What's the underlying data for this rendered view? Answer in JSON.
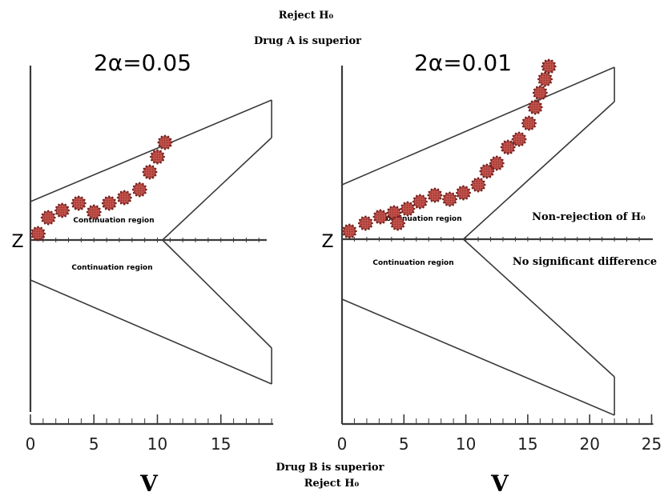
{
  "annotations": {
    "top_reject": "Reject H₀",
    "top_superior": "Drug A is superior",
    "bottom_superior": "Drug B is superior",
    "bottom_reject": "Reject H₀",
    "non_rejection": "Non-rejection of H₀",
    "no_difference": "No significant difference"
  },
  "colors": {
    "line": "#3a3a3a",
    "marker": "#c2504a",
    "marker_edge": "#7a2420"
  },
  "chart_data": [
    {
      "type": "line",
      "title": "2α=0.05",
      "xlabel": "V",
      "ylabel": "Z",
      "xlim": [
        0,
        19
      ],
      "xticks": [
        0,
        5,
        10,
        15
      ],
      "tick_labels": [
        "0",
        "5",
        "10",
        "15"
      ],
      "region_labels": [
        "Continuation region",
        "Continuation region"
      ],
      "boundaries": {
        "upper_outer": {
          "x": [
            0,
            19
          ],
          "z": [
            48,
            175
          ]
        },
        "upper_inner": {
          "x": [
            10.4,
            19
          ],
          "z": [
            0,
            128
          ]
        },
        "lower_inner": {
          "x": [
            10.4,
            19
          ],
          "z": [
            0,
            -135
          ]
        },
        "lower_outer": {
          "x": [
            0,
            19
          ],
          "z": [
            -50,
            -180
          ]
        }
      },
      "path": {
        "x": [
          0.6,
          1.4,
          2.5,
          3.8,
          5.0,
          6.2,
          7.4,
          8.6,
          9.4,
          10.0,
          10.6
        ],
        "z": [
          8,
          28,
          37,
          46,
          35,
          46,
          53,
          63,
          85,
          104,
          122
        ]
      }
    },
    {
      "type": "line",
      "title": "2α=0.01",
      "xlabel": "V",
      "ylabel": "Z",
      "xlim": [
        0,
        25
      ],
      "xticks": [
        0,
        5,
        10,
        15,
        20,
        25
      ],
      "tick_labels": [
        "0",
        "5",
        "10",
        "15",
        "20",
        "25"
      ],
      "region_labels": [
        "Continuation region",
        "Continuation region"
      ],
      "boundaries": {
        "upper_outer": {
          "x": [
            0,
            22
          ],
          "z": [
            68,
            215
          ]
        },
        "upper_inner": {
          "x": [
            9.8,
            22
          ],
          "z": [
            0,
            172
          ]
        },
        "lower_inner": {
          "x": [
            9.8,
            22
          ],
          "z": [
            0,
            -172
          ]
        },
        "lower_outer": {
          "x": [
            0,
            22
          ],
          "z": [
            -75,
            -220
          ]
        }
      },
      "path": {
        "x": [
          0.6,
          1.9,
          3.1,
          4.2,
          4.5,
          5.3,
          6.3,
          7.5,
          8.7,
          9.8,
          11.0,
          11.7,
          12.5,
          13.4,
          14.3,
          15.1,
          15.6,
          16.0,
          16.4,
          16.7
        ],
        "z": [
          10,
          20,
          28,
          33,
          20,
          38,
          47,
          55,
          50,
          58,
          68,
          85,
          95,
          115,
          125,
          145,
          165,
          183,
          200,
          216
        ]
      }
    }
  ]
}
